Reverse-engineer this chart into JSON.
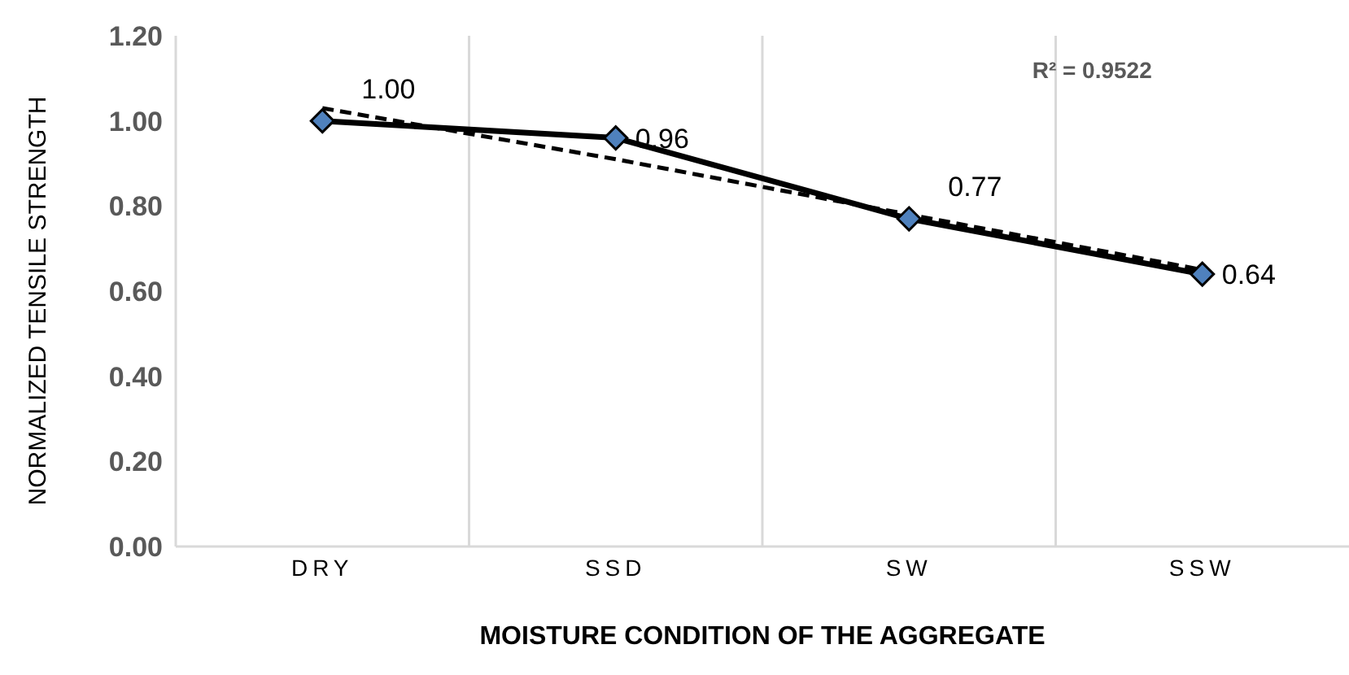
{
  "chart_data": {
    "type": "line",
    "xlabel": "MOISTURE CONDITION OF THE AGGREGATE",
    "ylabel": "NORMALIZED TENSILE STRENGTH",
    "categories": [
      "DRY",
      "SSD",
      "SW",
      "SSW"
    ],
    "series": [
      {
        "type": "line",
        "color": "#000000",
        "colors": [
          "#4f81bd",
          "#4f81bd",
          "#4f81bd",
          "#4f81bd"
        ],
        "values": [
          1.0,
          0.96,
          0.77,
          0.64
        ],
        "value_labels": [
          "1.00",
          "0.96",
          "0.77",
          "0.64"
        ],
        "marker": "diamond",
        "line_style": "solid"
      },
      {
        "type": "line",
        "color": "#000000",
        "values": [
          1.03,
          0.91,
          0.78,
          0.65
        ],
        "marker": "none",
        "line_style": "dashed"
      }
    ],
    "ylim": [
      0,
      1.2
    ],
    "yticks": [
      {
        "value": 0,
        "label": "0.00"
      },
      {
        "value": 0.2,
        "label": "0.20"
      },
      {
        "value": 0.4,
        "label": "0.40"
      },
      {
        "value": 0.6,
        "label": "0.60"
      },
      {
        "value": 0.8,
        "label": "0.80"
      },
      {
        "value": 1.0,
        "label": "1.00"
      },
      {
        "value": 1.2,
        "label": "1.20"
      }
    ],
    "grid": "x",
    "legend": false,
    "annotations": [
      "R² = 0.9522"
    ]
  }
}
